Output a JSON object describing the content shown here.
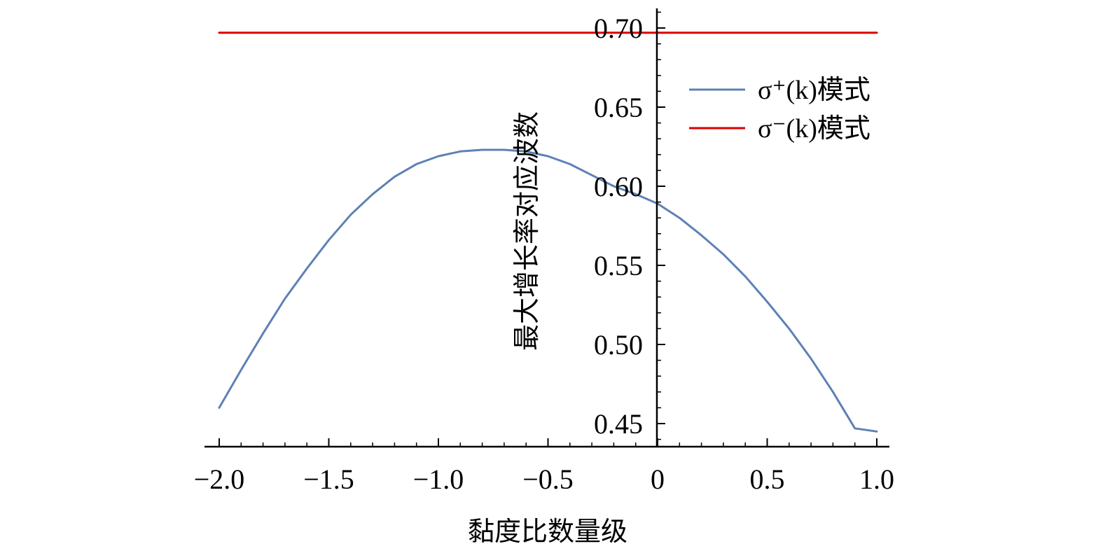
{
  "chart_data": {
    "type": "line",
    "title": "",
    "xlabel": "黏度比数量级",
    "ylabel": "最大增长率对应波数",
    "xlim": [
      -2.0,
      1.0
    ],
    "ylim": [
      0.44,
      0.712
    ],
    "x_ticks": [
      -2.0,
      -1.5,
      -1.0,
      -0.5,
      0,
      0.5,
      1.0
    ],
    "x_tick_labels": [
      "−2.0",
      "−1.5",
      "−1.0",
      "−0.5",
      "0",
      "0.5",
      "1.0"
    ],
    "y_ticks": [
      0.45,
      0.5,
      0.55,
      0.6,
      0.65,
      0.7
    ],
    "y_tick_labels": [
      "0.45",
      "0.50",
      "0.55",
      "0.60",
      "0.65",
      "0.70"
    ],
    "grid": false,
    "legend_position": "top-right",
    "series": [
      {
        "name": "σ⁺(k)模式",
        "color": "#5e81b5",
        "x": [
          -2.0,
          -1.9,
          -1.8,
          -1.7,
          -1.6,
          -1.5,
          -1.4,
          -1.3,
          -1.2,
          -1.1,
          -1.0,
          -0.9,
          -0.8,
          -0.7,
          -0.6,
          -0.5,
          -0.4,
          -0.3,
          -0.2,
          -0.1,
          0.0,
          0.1,
          0.2,
          0.3,
          0.4,
          0.5,
          0.6,
          0.7,
          0.8,
          0.9,
          1.0
        ],
        "y": [
          0.46,
          0.484,
          0.507,
          0.529,
          0.548,
          0.566,
          0.582,
          0.595,
          0.606,
          0.614,
          0.619,
          0.622,
          0.623,
          0.623,
          0.622,
          0.619,
          0.614,
          0.607,
          0.6,
          0.595,
          0.589,
          0.58,
          0.569,
          0.557,
          0.543,
          0.527,
          0.51,
          0.491,
          0.47,
          0.447,
          0.445
        ]
      },
      {
        "name": "σ⁻(k)模式",
        "color": "#dd0000",
        "x": [
          -2.0,
          1.0
        ],
        "y": [
          0.697,
          0.697
        ]
      }
    ]
  }
}
